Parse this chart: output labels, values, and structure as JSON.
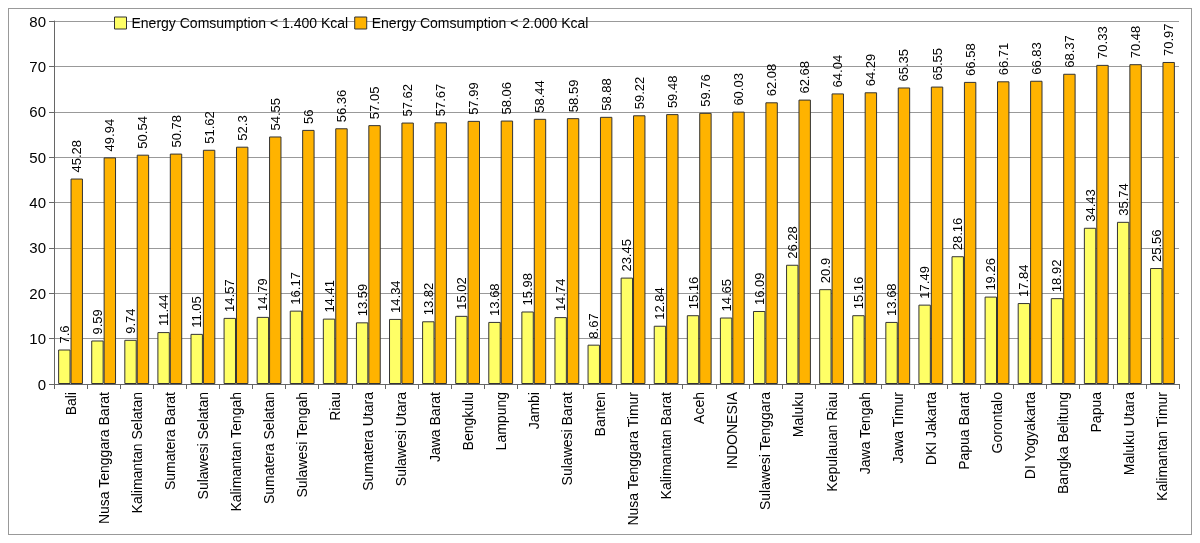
{
  "chart_data": {
    "type": "bar",
    "categories": [
      "Bali",
      "Nusa Tenggara Barat",
      "Kalimantan Selatan",
      "Sumatera Barat",
      "Sulawesi Selatan",
      "Kalimantan Tengah",
      "Sumatera Selatan",
      "Sulawesi Tengah",
      "Riau",
      "Sumatera Utara",
      "Sulawesi Utara",
      "Jawa Barat",
      "Bengkulu",
      "Lampung",
      "Jambi",
      "Sulawesi Barat",
      "Banten",
      "Nusa Tenggara Timur",
      "Kalimantan Barat",
      "Aceh",
      "INDONESIA",
      "Sulawesi Tenggara",
      "Maluku",
      "Kepulauan Riau",
      "Jawa Tengah",
      "Jawa Timur",
      "DKI Jakarta",
      "Papua Barat",
      "Gorontalo",
      "DI Yogyakarta",
      "Bangka Belitung",
      "Papua",
      "Maluku Utara",
      "Kalimantan Timur"
    ],
    "series": [
      {
        "name": "Energy Comsumption < 1.400 Kcal",
        "color": "#ffff66",
        "values": [
          7.6,
          9.59,
          9.74,
          11.44,
          11.05,
          14.57,
          14.79,
          16.17,
          14.41,
          13.59,
          14.34,
          13.82,
          15.02,
          13.68,
          15.98,
          14.74,
          8.67,
          23.45,
          12.84,
          15.16,
          14.65,
          16.09,
          26.28,
          20.9,
          15.16,
          13.68,
          17.49,
          28.16,
          19.26,
          17.84,
          18.92,
          34.43,
          35.74,
          25.56
        ]
      },
      {
        "name": "Energy Comsumption < 2.000 Kcal",
        "color": "#ffb300",
        "values": [
          45.28,
          49.94,
          50.54,
          50.78,
          51.62,
          52.3,
          54.55,
          56,
          56.36,
          57.05,
          57.62,
          57.67,
          57.99,
          58.06,
          58.44,
          58.59,
          58.88,
          59.22,
          59.48,
          59.76,
          60.03,
          62.08,
          62.68,
          64.04,
          64.29,
          65.35,
          65.55,
          66.58,
          66.71,
          66.83,
          68.37,
          70.33,
          70.48,
          70.97
        ]
      }
    ],
    "ylim": [
      0,
      80
    ],
    "yticks": [
      0,
      10,
      20,
      30,
      40,
      50,
      60,
      70,
      80
    ],
    "grid": "y",
    "legend": "top left",
    "data_labels": true
  }
}
